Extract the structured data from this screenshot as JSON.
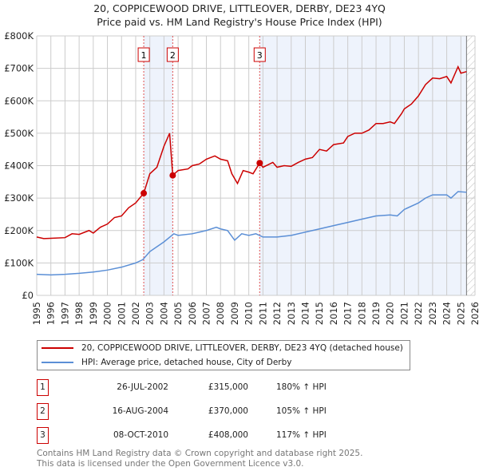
{
  "chart_data": {
    "type": "line",
    "title": "20, COPPICEWOOD DRIVE, LITTLEOVER, DERBY, DE23 4YQ",
    "subtitle": "Price paid vs. HM Land Registry's House Price Index (HPI)",
    "xlim": [
      1995,
      2026
    ],
    "ylim": [
      0,
      800000
    ],
    "y_ticks": [
      {
        "v": 0,
        "label": "£0"
      },
      {
        "v": 100000,
        "label": "£100K"
      },
      {
        "v": 200000,
        "label": "£200K"
      },
      {
        "v": 300000,
        "label": "£300K"
      },
      {
        "v": 400000,
        "label": "£400K"
      },
      {
        "v": 500000,
        "label": "£500K"
      },
      {
        "v": 600000,
        "label": "£600K"
      },
      {
        "v": 700000,
        "label": "£700K"
      },
      {
        "v": 800000,
        "label": "£800K"
      }
    ],
    "x_ticks": [
      "1995",
      "1996",
      "1997",
      "1998",
      "1999",
      "2000",
      "2001",
      "2002",
      "2003",
      "2004",
      "2005",
      "2006",
      "2007",
      "2008",
      "2009",
      "2010",
      "2011",
      "2012",
      "2013",
      "2014",
      "2015",
      "2016",
      "2017",
      "2018",
      "2019",
      "2020",
      "2021",
      "2022",
      "2023",
      "2024",
      "2025",
      "2026"
    ],
    "grid": true,
    "series": [
      {
        "name": "20, COPPICEWOOD DRIVE, LITTLEOVER, DERBY, DE23 4YQ (detached house)",
        "color": "#cc0000",
        "x": [
          1995,
          1995.5,
          1996,
          1997,
          1997.5,
          1998,
          1998.7,
          1999,
          1999.5,
          2000,
          2000.5,
          2001,
          2001.5,
          2002,
          2002.57,
          2003,
          2003.5,
          2004,
          2004.4,
          2004.62,
          2005,
          2005.7,
          2006,
          2006.5,
          2007,
          2007.6,
          2008,
          2008.5,
          2008.8,
          2009.2,
          2009.6,
          2010,
          2010.3,
          2010.77,
          2011,
          2011.7,
          2012,
          2012.5,
          2013,
          2013.5,
          2014,
          2014.5,
          2015,
          2015.5,
          2016,
          2016.7,
          2017,
          2017.5,
          2018,
          2018.5,
          2019,
          2019.5,
          2020,
          2020.3,
          2020.8,
          2021,
          2021.5,
          2022,
          2022.5,
          2023,
          2023.5,
          2024,
          2024.3,
          2024.8,
          2025,
          2025.4
        ],
        "y": [
          180,
          175,
          176,
          178,
          190,
          188,
          200,
          192,
          210,
          220,
          240,
          245,
          270,
          285,
          315,
          375,
          395,
          460,
          500,
          370,
          385,
          390,
          400,
          405,
          420,
          430,
          420,
          415,
          375,
          345,
          385,
          380,
          375,
          408,
          395,
          410,
          395,
          400,
          398,
          410,
          420,
          425,
          450,
          445,
          465,
          470,
          490,
          500,
          500,
          510,
          530,
          530,
          535,
          530,
          560,
          575,
          590,
          615,
          650,
          670,
          668,
          675,
          655,
          705,
          685,
          690
        ]
      },
      {
        "name": "HPI: Average price, detached house, City of Derby",
        "color": "#5b8fd6",
        "x": [
          1995,
          1996,
          1997,
          1998,
          1999,
          2000,
          2001,
          2002,
          2002.5,
          2003,
          2004,
          2004.7,
          2005,
          2006,
          2007,
          2007.7,
          2008,
          2008.5,
          2009,
          2009.5,
          2010,
          2010.5,
          2011,
          2012,
          2013,
          2014,
          2015,
          2016,
          2017,
          2018,
          2019,
          2020,
          2020.5,
          2021,
          2022,
          2022.5,
          2023,
          2024,
          2024.3,
          2024.8,
          2025.4
        ],
        "y": [
          65,
          63,
          65,
          68,
          72,
          78,
          87,
          100,
          110,
          135,
          165,
          190,
          185,
          190,
          200,
          210,
          205,
          200,
          170,
          190,
          185,
          190,
          180,
          180,
          185,
          195,
          205,
          215,
          225,
          235,
          245,
          248,
          245,
          265,
          285,
          300,
          310,
          310,
          300,
          320,
          318
        ]
      }
    ],
    "y_unit": "thousands GBP",
    "sales": [
      {
        "n": "1",
        "x": 2002.57,
        "y": 315,
        "date": "26-JUL-2002",
        "price": "£315,000",
        "hpi": "180% ↑ HPI"
      },
      {
        "n": "2",
        "x": 2004.62,
        "y": 370,
        "date": "16-AUG-2004",
        "price": "£370,000",
        "hpi": "105% ↑ HPI"
      },
      {
        "n": "3",
        "x": 2010.77,
        "y": 408,
        "date": "08-OCT-2010",
        "price": "£408,000",
        "hpi": "117% ↑ HPI"
      }
    ],
    "forecast_start": 2025.4,
    "legend_placement": "below"
  },
  "header": {
    "title": "20, COPPICEWOOD DRIVE, LITTLEOVER, DERBY, DE23 4YQ",
    "subtitle": "Price paid vs. HM Land Registry's House Price Index (HPI)"
  },
  "legend": {
    "red": "20, COPPICEWOOD DRIVE, LITTLEOVER, DERBY, DE23 4YQ (detached house)",
    "blue": "HPI: Average price, detached house, City of Derby"
  },
  "footer": {
    "line1": "Contains HM Land Registry data © Crown copyright and database right 2025.",
    "line2": "This data is licensed under the Open Government Licence v3.0."
  }
}
